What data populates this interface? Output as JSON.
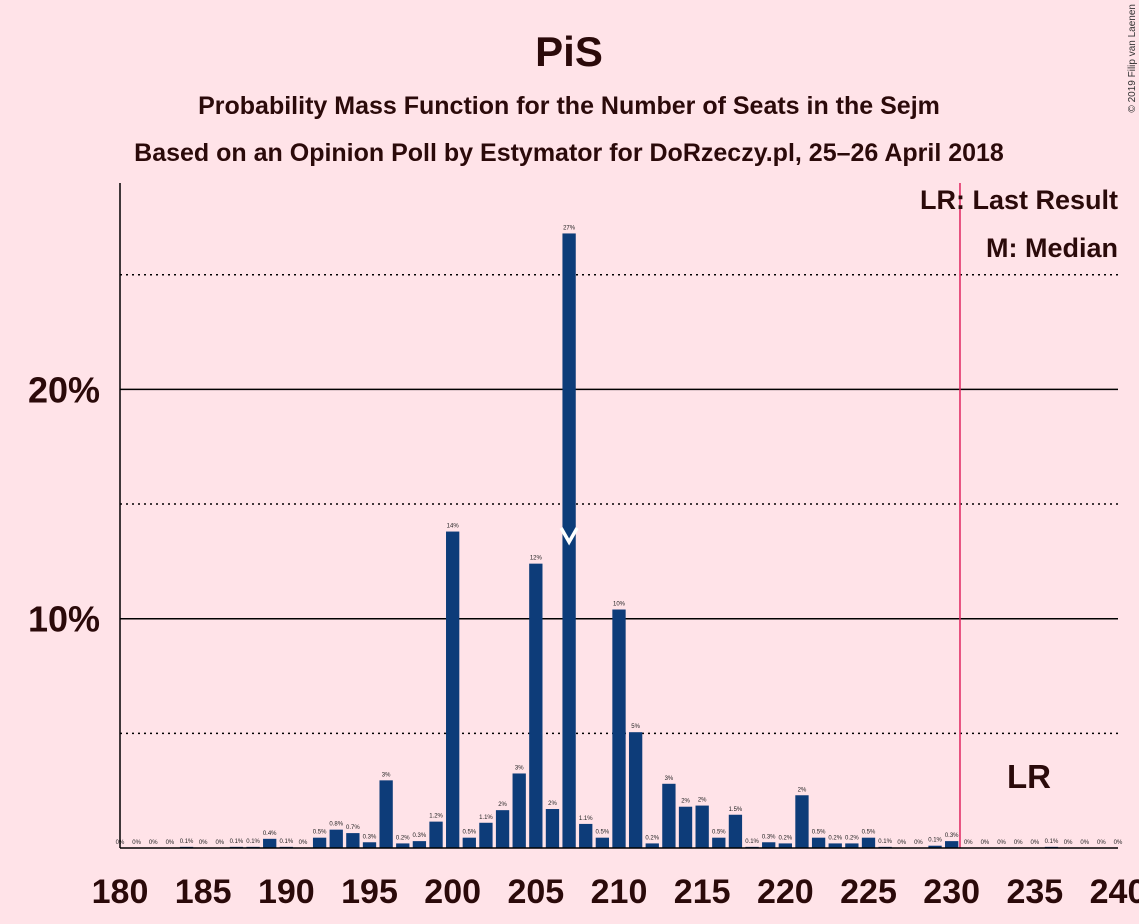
{
  "title": "PiS",
  "subtitle1": "Probability Mass Function for the Number of Seats in the Sejm",
  "subtitle2": "Based on an Opinion Poll by Estymator for DoRzeczy.pl, 25–26 April 2018",
  "copyright": "© 2019 Filip van Laenen",
  "legend": {
    "last_result": "LR: Last Result",
    "median": "M: Median"
  },
  "lr_marker_label": "LR",
  "colors": {
    "background": "#FFE3E8",
    "bar": "#0D3C79",
    "last_result_line": "#E0245E",
    "text": "#2b0a0a"
  },
  "chart_data": {
    "type": "bar",
    "title": "PiS",
    "xlabel": "",
    "ylabel": "",
    "xlim": [
      180,
      240
    ],
    "ylim": [
      0,
      0.29
    ],
    "x_ticks": [
      180,
      185,
      190,
      195,
      200,
      205,
      210,
      215,
      220,
      225,
      230,
      235,
      240
    ],
    "y_ticks_labeled": [
      {
        "value": 0.1,
        "label": "10%"
      },
      {
        "value": 0.2,
        "label": "20%"
      }
    ],
    "y_gridlines_dotted": [
      0.05,
      0.15,
      0.25
    ],
    "median": 207,
    "last_result": 230.5,
    "bars": [
      {
        "x": 180,
        "value": 0.0,
        "label": "0%"
      },
      {
        "x": 181,
        "value": 0.0,
        "label": "0%"
      },
      {
        "x": 182,
        "value": 0.0,
        "label": "0%"
      },
      {
        "x": 183,
        "value": 0.0,
        "label": "0%"
      },
      {
        "x": 184,
        "value": 0.0005,
        "label": "0.1%"
      },
      {
        "x": 185,
        "value": 0.0,
        "label": "0%"
      },
      {
        "x": 186,
        "value": 0.0,
        "label": "0%"
      },
      {
        "x": 187,
        "value": 0.0005,
        "label": "0.1%"
      },
      {
        "x": 188,
        "value": 0.0005,
        "label": "0.1%"
      },
      {
        "x": 189,
        "value": 0.004,
        "label": "0.4%"
      },
      {
        "x": 190,
        "value": 0.0005,
        "label": "0.1%"
      },
      {
        "x": 191,
        "value": 0.0,
        "label": "0%"
      },
      {
        "x": 192,
        "value": 0.0045,
        "label": "0.5%"
      },
      {
        "x": 193,
        "value": 0.008,
        "label": "0.8%"
      },
      {
        "x": 194,
        "value": 0.0065,
        "label": "0.7%"
      },
      {
        "x": 195,
        "value": 0.0025,
        "label": "0.3%"
      },
      {
        "x": 196,
        "value": 0.0295,
        "label": "3%"
      },
      {
        "x": 197,
        "value": 0.002,
        "label": "0.2%"
      },
      {
        "x": 198,
        "value": 0.003,
        "label": "0.3%"
      },
      {
        "x": 199,
        "value": 0.0115,
        "label": "1.2%"
      },
      {
        "x": 200,
        "value": 0.138,
        "label": "14%"
      },
      {
        "x": 201,
        "value": 0.0045,
        "label": "0.5%"
      },
      {
        "x": 202,
        "value": 0.011,
        "label": "1.1%"
      },
      {
        "x": 203,
        "value": 0.0165,
        "label": "2%"
      },
      {
        "x": 204,
        "value": 0.0325,
        "label": "3%"
      },
      {
        "x": 205,
        "value": 0.124,
        "label": "12%"
      },
      {
        "x": 206,
        "value": 0.017,
        "label": "2%"
      },
      {
        "x": 207,
        "value": 0.268,
        "label": "27%"
      },
      {
        "x": 208,
        "value": 0.0105,
        "label": "1.1%"
      },
      {
        "x": 209,
        "value": 0.0045,
        "label": "0.5%"
      },
      {
        "x": 210,
        "value": 0.104,
        "label": "10%"
      },
      {
        "x": 211,
        "value": 0.0505,
        "label": "5%"
      },
      {
        "x": 212,
        "value": 0.002,
        "label": "0.2%"
      },
      {
        "x": 213,
        "value": 0.028,
        "label": "3%"
      },
      {
        "x": 214,
        "value": 0.018,
        "label": "2%"
      },
      {
        "x": 215,
        "value": 0.0185,
        "label": "2%"
      },
      {
        "x": 216,
        "value": 0.0045,
        "label": "0.5%"
      },
      {
        "x": 217,
        "value": 0.0145,
        "label": "1.5%"
      },
      {
        "x": 218,
        "value": 0.0005,
        "label": "0.1%"
      },
      {
        "x": 219,
        "value": 0.0025,
        "label": "0.3%"
      },
      {
        "x": 220,
        "value": 0.002,
        "label": "0.2%"
      },
      {
        "x": 221,
        "value": 0.023,
        "label": "2%"
      },
      {
        "x": 222,
        "value": 0.0045,
        "label": "0.5%"
      },
      {
        "x": 223,
        "value": 0.002,
        "label": "0.2%"
      },
      {
        "x": 224,
        "value": 0.002,
        "label": "0.2%"
      },
      {
        "x": 225,
        "value": 0.0045,
        "label": "0.5%"
      },
      {
        "x": 226,
        "value": 0.0005,
        "label": "0.1%"
      },
      {
        "x": 227,
        "value": 0.0,
        "label": "0%"
      },
      {
        "x": 228,
        "value": 0.0,
        "label": "0%"
      },
      {
        "x": 229,
        "value": 0.001,
        "label": "0.1%"
      },
      {
        "x": 230,
        "value": 0.003,
        "label": "0.3%"
      },
      {
        "x": 231,
        "value": 0.0,
        "label": "0%"
      },
      {
        "x": 232,
        "value": 0.0,
        "label": "0%"
      },
      {
        "x": 233,
        "value": 0.0,
        "label": "0%"
      },
      {
        "x": 234,
        "value": 0.0,
        "label": "0%"
      },
      {
        "x": 235,
        "value": 0.0,
        "label": "0%"
      },
      {
        "x": 236,
        "value": 0.0005,
        "label": "0.1%"
      },
      {
        "x": 237,
        "value": 0.0,
        "label": "0%"
      },
      {
        "x": 238,
        "value": 0.0,
        "label": "0%"
      },
      {
        "x": 239,
        "value": 0.0,
        "label": "0%"
      },
      {
        "x": 240,
        "value": 0.0,
        "label": "0%"
      }
    ]
  }
}
